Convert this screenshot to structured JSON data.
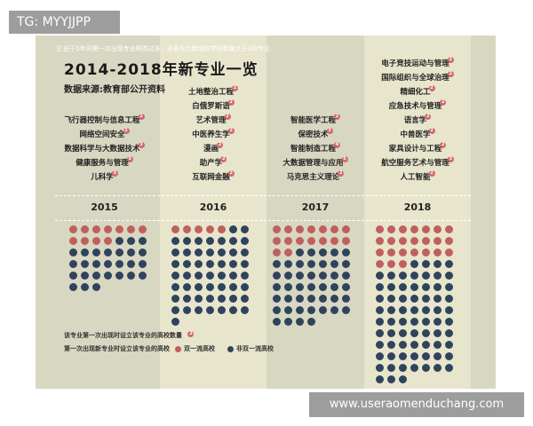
{
  "badge_top": "TG: MYYJJPP",
  "watermark": "www.useraomenduchang.com",
  "note": "注:由于5年间第一次出现专业种类过多，本表均为新增的学校数量大于1的专业.",
  "title": "2014-2018年新专业一览",
  "source": "数据来源:教育部公开资料",
  "colors": {
    "double_first_class": "#c0605e",
    "non_double_first_class": "#2f445c",
    "badge": "#d26a6e"
  },
  "years": [
    {
      "year": "2015",
      "majors": [
        {
          "name": "飞行器控制与信息工程",
          "count": "2"
        },
        {
          "name": "网络空间安全",
          "count": "2"
        },
        {
          "name": "数据科学与大数据技术",
          "count": "3"
        },
        {
          "name": "健康服务与管理",
          "count": "5"
        },
        {
          "name": "儿科学",
          "count": "3"
        }
      ],
      "first_class": 11,
      "total": 38
    },
    {
      "year": "2016",
      "majors": [
        {
          "name": "土地整治工程",
          "count": "2"
        },
        {
          "name": "白俄罗斯语",
          "count": "2"
        },
        {
          "name": "艺术管理",
          "count": "2"
        },
        {
          "name": "中医养生学",
          "count": "2"
        },
        {
          "name": "漫画",
          "count": "2"
        },
        {
          "name": "助产学",
          "count": "2"
        },
        {
          "name": "互联网金融",
          "count": "2"
        }
      ],
      "first_class": 5,
      "total": 57
    },
    {
      "year": "2017",
      "majors": [
        {
          "name": "智能医学工程",
          "count": "2"
        },
        {
          "name": "保密技术",
          "count": "3"
        },
        {
          "name": "智能制造工程",
          "count": "4"
        },
        {
          "name": "大数据管理与应用",
          "count": "5"
        },
        {
          "name": "马克思主义理论",
          "count": "2"
        }
      ],
      "first_class": 16,
      "total": 60
    },
    {
      "year": "2018",
      "majors": [
        {
          "name": "电子竞技运动与管理",
          "count": "2"
        },
        {
          "name": "国际组织与全球治理",
          "count": "2"
        },
        {
          "name": "精细化工",
          "count": "2"
        },
        {
          "name": "应急技术与管理",
          "count": "2"
        },
        {
          "name": "语言学",
          "count": "2"
        },
        {
          "name": "中兽医学",
          "count": "2"
        },
        {
          "name": "家具设计与工程",
          "count": "2"
        },
        {
          "name": "航空服务艺术与管理",
          "count": "3"
        },
        {
          "name": "人工智能",
          "count": "2"
        }
      ],
      "first_class": 24,
      "total": 94
    }
  ],
  "legend": {
    "count_label": "该专业第一次出现时设立该专业的高校数量",
    "count_sample": "2",
    "schools_label": "第一次出现新专业时设立该专业的高校",
    "first_class": "双一流高校",
    "non_first_class": "非双一流高校"
  }
}
